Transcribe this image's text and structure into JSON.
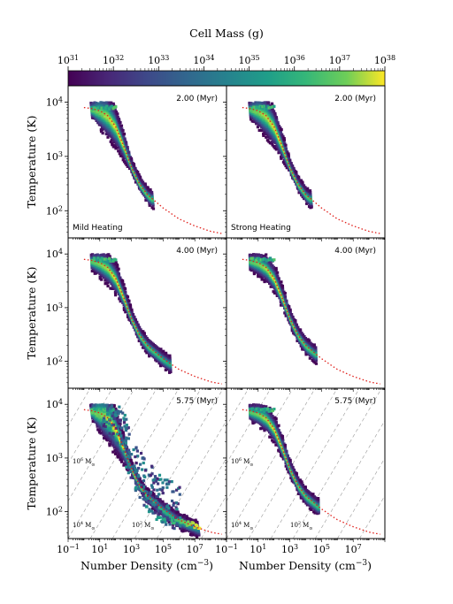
{
  "colorbar": {
    "label": "Cell Mass (g)",
    "ticks": [
      "10^31",
      "10^32",
      "10^33",
      "10^34",
      "10^35",
      "10^36",
      "10^37",
      "10^38"
    ],
    "log_min": 31,
    "log_max": 38,
    "colormap": "viridis"
  },
  "axes": {
    "xlabel": "Number Density (cm^-3)",
    "ylabel": "Temperature (K)",
    "x_log_range": [
      -1,
      9
    ],
    "y_log_range": [
      1.5,
      4.3
    ],
    "x_ticks": [
      "10^-1",
      "10^1",
      "10^3",
      "10^5",
      "10^7"
    ],
    "y_ticks": [
      "10^2",
      "10^3",
      "10^4"
    ],
    "x_scale": "log",
    "y_scale": "log"
  },
  "column_labels": [
    "Mild Heating",
    "Strong Heating"
  ],
  "row_times": [
    "2.00 (Myr)",
    "4.00 (Myr)",
    "5.75 (Myr)"
  ],
  "jeans_mass_labels": [
    "10^6 M_sun",
    "10^4 M_sun",
    "10^2 M_sun"
  ],
  "chart_data": {
    "type": "heatmap",
    "title": "",
    "xlabel": "Number Density (cm^-3)",
    "ylabel": "Temperature (K)",
    "equilibrium_curve": {
      "style": "red dotted",
      "x_log": [
        0,
        0.5,
        1,
        1.5,
        2,
        2.5,
        3,
        3.5,
        4,
        5,
        6,
        7,
        8,
        8.7
      ],
      "y_log": [
        3.9,
        3.88,
        3.84,
        3.75,
        3.55,
        3.2,
        2.8,
        2.5,
        2.3,
        2.05,
        1.85,
        1.72,
        1.62,
        1.58
      ]
    },
    "panels": [
      {
        "row": "2.00 (Myr)",
        "column": "Mild Heating",
        "distribution": "broad plume along the equilibrium curve from n~10^0 to 10^4 cm^-3, peak mass near 10^37 g"
      },
      {
        "row": "2.00 (Myr)",
        "column": "Strong Heating",
        "distribution": "broad plume along the equilibrium curve from n~10^0 to 10^4 cm^-3, peak mass near 10^37 g"
      },
      {
        "row": "4.00 (Myr)",
        "column": "Mild Heating",
        "distribution": "band along the equilibrium curve reaching n~10^5 cm^-3"
      },
      {
        "row": "4.00 (Myr)",
        "column": "Strong Heating",
        "distribution": "narrow band along the equilibrium curve reaching n~10^4 cm^-3"
      },
      {
        "row": "5.75 (Myr)",
        "column": "Mild Heating",
        "distribution": "wide plume extending to n~10^7 cm^-3 and T~50 K"
      },
      {
        "row": "5.75 (Myr)",
        "column": "Strong Heating",
        "distribution": "narrow band along the equilibrium curve reaching n~10^4 cm^-3"
      }
    ],
    "jeans_mass_lines": "grey dashed diagonals"
  }
}
